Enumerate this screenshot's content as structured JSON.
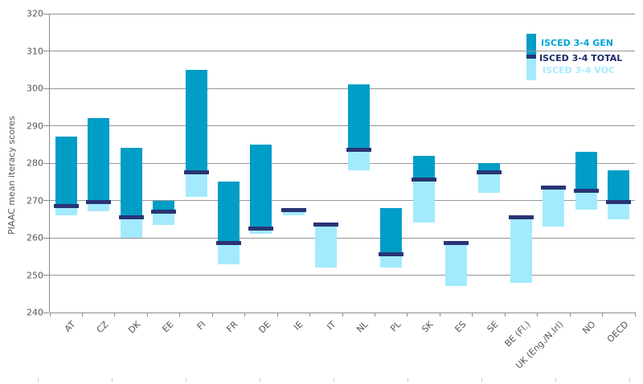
{
  "chart_data": {
    "type": "bar",
    "variant": "floating-range-bars",
    "title": "",
    "xlabel": "",
    "ylabel": "PIAAC mean iteracy scores",
    "ylim": [
      240,
      320
    ],
    "ytick_step": 10,
    "grid": true,
    "legend_position": "top-right",
    "categories": [
      "AT",
      "CZ",
      "DK",
      "EE",
      "FI",
      "FR",
      "DE",
      "IE",
      "IT",
      "NL",
      "PL",
      "SK",
      "ES",
      "SE",
      "BE (Fl.)",
      "UK (Eng./N.Irl)",
      "NO",
      "OECD"
    ],
    "series": [
      {
        "name": "ISCED 3-4 GEN",
        "role": "gen",
        "values": [
          287,
          292,
          284,
          270,
          305,
          275,
          285,
          null,
          null,
          301,
          268,
          282,
          null,
          280,
          null,
          null,
          283,
          278
        ]
      },
      {
        "name": "ISCED 3-4 TOTAL",
        "role": "total",
        "values": [
          268.5,
          269.5,
          265.5,
          267,
          277.5,
          258.5,
          262.5,
          267.5,
          263.5,
          283.5,
          255.5,
          275.5,
          258.5,
          277.5,
          265.5,
          273.5,
          272.5,
          269.5
        ]
      },
      {
        "name": "ISCED 3-4 VOC",
        "role": "voc",
        "values": [
          266,
          267,
          260,
          263.5,
          271,
          253,
          261,
          266,
          252,
          278,
          252,
          264,
          247,
          272,
          248,
          263,
          267.5,
          265
        ]
      }
    ],
    "legend": {
      "items": [
        {
          "label": "ISCED 3-4 GEN",
          "color": "#009DC7"
        },
        {
          "label": "ISCED 3-4 TOTAL",
          "color": "#293474"
        },
        {
          "label": "ISCED 3-4 VOC",
          "color": "#A3EAFE"
        }
      ]
    },
    "colors": {
      "gen": "#009DC7",
      "total": "#293474",
      "voc": "#A3EAFE",
      "legend_text_gen": "#00A3D9",
      "legend_text_total": "#1C2B66",
      "legend_text_voc": "#A8EBFF",
      "gridline": "#949494",
      "axis": "#8C8C8C",
      "tick_label": "#54565E",
      "minor_bottom_tick": "#C9C9C9",
      "background": "#FFFFFF"
    }
  }
}
